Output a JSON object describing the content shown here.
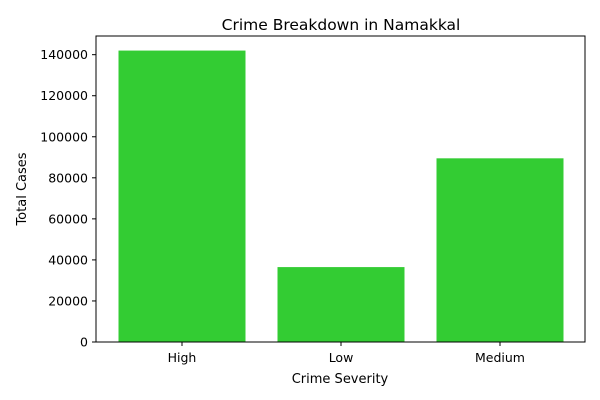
{
  "chart_data": {
    "type": "bar",
    "title": "Crime Breakdown in Namakkal",
    "xlabel": "Crime Severity",
    "ylabel": "Total Cases",
    "categories": [
      "High",
      "Low",
      "Medium"
    ],
    "values": [
      142000,
      36500,
      89500
    ],
    "ylim": [
      0,
      149100
    ],
    "yticks": [
      0,
      20000,
      40000,
      60000,
      80000,
      100000,
      120000,
      140000
    ],
    "bar_color": "#33cc33",
    "grid": false,
    "legend": "none"
  }
}
